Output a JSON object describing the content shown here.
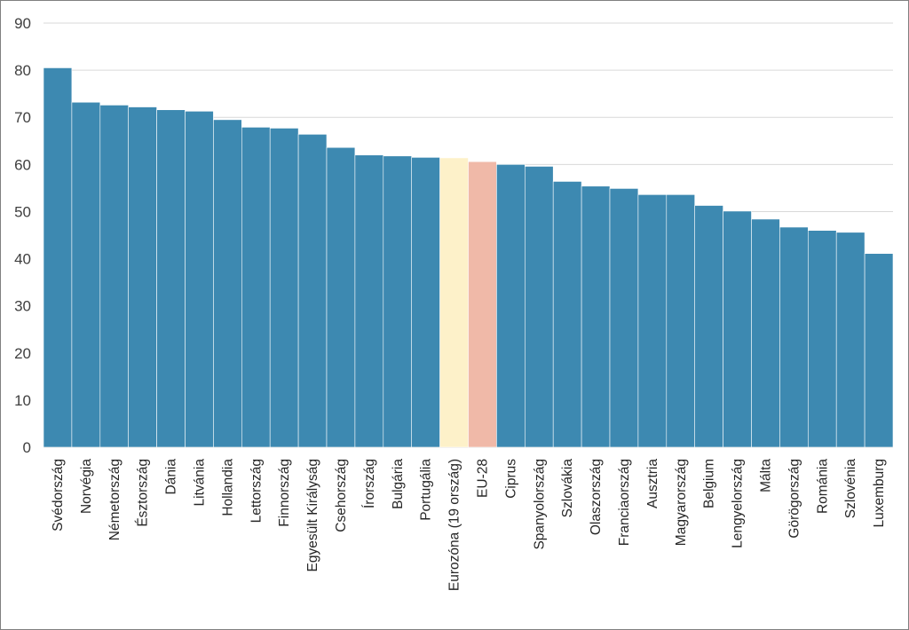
{
  "chart_data": {
    "type": "bar",
    "title": "",
    "xlabel": "",
    "ylabel": "",
    "ylim": [
      0,
      90
    ],
    "yticks": [
      0,
      10,
      20,
      30,
      40,
      50,
      60,
      70,
      80,
      90
    ],
    "grid": true,
    "legend": "none",
    "categories": [
      "Svédország",
      "Norvégia",
      "Németország",
      "Észtország",
      "Dánia",
      "Litvánia",
      "Hollandia",
      "Lettország",
      "Finnország",
      "Egyesült Királyság",
      "Csehország",
      "Írország",
      "Bulgária",
      "Portugália",
      "Eurozóna (19 ország)",
      "EU-28",
      "Ciprus",
      "Spanyolország",
      "Szlovákia",
      "Olaszország",
      "Franciaország",
      "Ausztria",
      "Magyarország",
      "Belgium",
      "Lengyelország",
      "Málta",
      "Görögország",
      "Románia",
      "Szlovénia",
      "Luxemburg"
    ],
    "values": [
      80.5,
      73.2,
      72.6,
      72.2,
      71.6,
      71.3,
      69.5,
      67.9,
      67.7,
      66.4,
      63.6,
      62.0,
      61.8,
      61.5,
      61.4,
      60.6,
      60.0,
      59.6,
      56.4,
      55.4,
      54.9,
      53.6,
      53.6,
      51.3,
      50.1,
      48.4,
      46.7,
      46.0,
      45.6,
      41.1
    ],
    "colors": {
      "default": "#3d89b1",
      "highlight": {
        "Eurozóna (19 ország)": "#fdf1c9",
        "EU-28": "#f0b9a8"
      }
    }
  }
}
